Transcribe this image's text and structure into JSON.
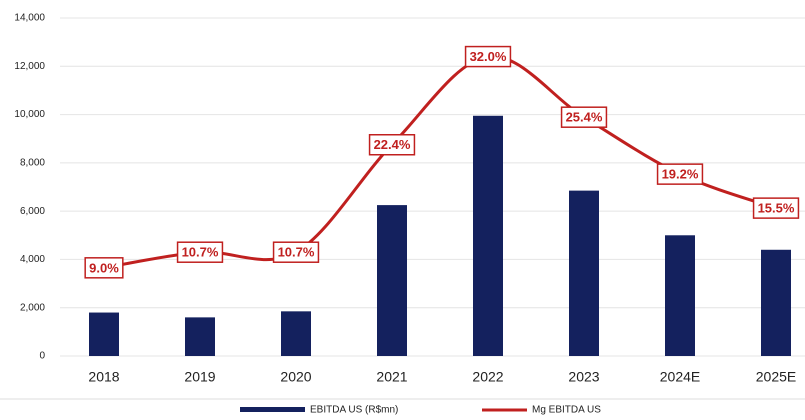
{
  "chart_data": {
    "type": "bar_line",
    "categories": [
      "2018",
      "2019",
      "2020",
      "2021",
      "2022",
      "2023",
      "2024E",
      "2025E"
    ],
    "series": [
      {
        "name": "EBITDA US (R$mn)",
        "type": "bar",
        "color": "#14215e",
        "values": [
          1800,
          1600,
          1850,
          6250,
          9950,
          6850,
          5000,
          4400
        ]
      },
      {
        "name": "Mg EBITDA US",
        "type": "line",
        "axis": "y2",
        "color": "#c0201f",
        "values": [
          9.0,
          10.7,
          10.7,
          22.4,
          32.0,
          25.4,
          19.2,
          15.5
        ],
        "value_labels": [
          "9.0%",
          "10.7%",
          "10.7%",
          "22.4%",
          "32.0%",
          "25.4%",
          "19.2%",
          "15.5%"
        ]
      }
    ],
    "ylim": [
      0,
      14000
    ],
    "yticks": [
      0,
      {
        "value": 2000,
        "label": "2,000"
      },
      {
        "value": 4000,
        "label": "4,000"
      },
      {
        "value": 6000,
        "label": "6,000"
      },
      {
        "value": 8000,
        "label": "8,000"
      },
      {
        "value": 10000,
        "label": "10,000"
      },
      {
        "value": 12000,
        "label": "12,000"
      },
      {
        "value": 14000,
        "label": "14,000"
      }
    ],
    "y2lim": [
      -0.6,
      36.2
    ],
    "grid": true,
    "legend": "bottom"
  }
}
